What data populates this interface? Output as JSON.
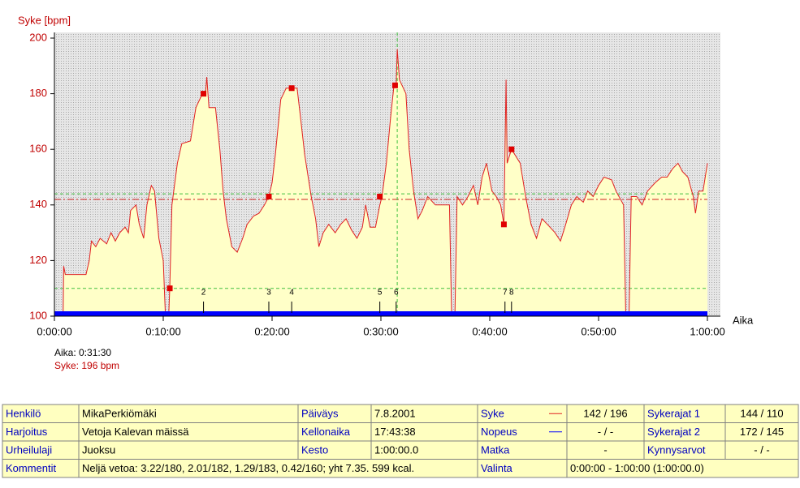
{
  "chart_data": {
    "type": "line",
    "y_label": "Syke [bpm]",
    "x_label": "Aika",
    "xlim": [
      0,
      60
    ],
    "ylim": [
      100,
      200
    ],
    "xticks": [
      {
        "value": 0,
        "label": "0:00:00"
      },
      {
        "value": 10,
        "label": "0:10:00"
      },
      {
        "value": 20,
        "label": "0:20:00"
      },
      {
        "value": 30,
        "label": "0:30:00"
      },
      {
        "value": 40,
        "label": "0:40:00"
      },
      {
        "value": 50,
        "label": "0:50:00"
      },
      {
        "value": 60,
        "label": "1:00:00"
      }
    ],
    "yticks": [
      100,
      120,
      140,
      160,
      180,
      200
    ],
    "series": [
      {
        "name": "Syke",
        "color": "#e02020",
        "x": [
          0.8,
          0.85,
          1.0,
          2.9,
          3.2,
          3.4,
          3.8,
          4.2,
          4.8,
          5.2,
          5.6,
          6.0,
          6.5,
          6.8,
          7.0,
          7.5,
          7.8,
          8.2,
          8.5,
          8.9,
          9.2,
          9.6,
          10.0,
          10.2,
          10.5,
          10.6,
          10.8,
          11.3,
          11.7,
          12.5,
          13.0,
          13.6,
          13.9,
          14.0,
          14.2,
          14.8,
          15.2,
          15.5,
          15.8,
          16.3,
          16.8,
          17.3,
          17.7,
          18.3,
          18.8,
          19.3,
          19.7,
          20.0,
          20.3,
          20.8,
          21.3,
          22.3,
          22.6,
          23.0,
          23.6,
          24.0,
          24.3,
          24.7,
          25.2,
          25.8,
          26.3,
          26.8,
          27.3,
          27.8,
          28.3,
          28.6,
          29.0,
          29.5,
          29.9,
          30.1,
          30.5,
          30.9,
          31.2,
          31.4,
          31.5,
          31.7,
          32.3,
          32.6,
          33.0,
          33.4,
          33.8,
          34.3,
          35.0,
          35.5,
          36.3,
          36.5,
          36.8,
          37.0,
          37.5,
          38.0,
          38.5,
          38.9,
          39.3,
          39.7,
          40.2,
          40.6,
          41.0,
          41.3,
          41.5,
          41.6,
          42.0,
          42.8,
          43.3,
          43.8,
          44.3,
          44.8,
          45.3,
          46.0,
          46.5,
          46.9,
          47.5,
          48.0,
          48.6,
          49.0,
          49.5,
          50.0,
          50.5,
          51.2,
          51.6,
          52.3,
          52.5,
          52.8,
          53.0,
          53.5,
          54.0,
          54.5,
          55.2,
          55.8,
          56.3,
          56.8,
          57.3,
          57.7,
          58.2,
          58.7,
          58.9,
          59.2,
          59.6,
          60.0
        ],
        "values": [
          100,
          118,
          115,
          115,
          120,
          127,
          125,
          128,
          126,
          130,
          127,
          130,
          132,
          130,
          138,
          140,
          133,
          128,
          140,
          147,
          145,
          128,
          120,
          100,
          100,
          110,
          140,
          155,
          162,
          163,
          175,
          180,
          181,
          186,
          175,
          175,
          160,
          145,
          135,
          125,
          123,
          128,
          133,
          136,
          137,
          140,
          143,
          148,
          158,
          178,
          182,
          182,
          172,
          158,
          143,
          135,
          125,
          130,
          133,
          130,
          133,
          135,
          131,
          128,
          132,
          140,
          132,
          132,
          140,
          143,
          155,
          172,
          183,
          183,
          196,
          185,
          180,
          160,
          145,
          135,
          138,
          143,
          140,
          140,
          140,
          100,
          100,
          143,
          140,
          143,
          147,
          140,
          150,
          155,
          145,
          143,
          140,
          133,
          185,
          155,
          160,
          155,
          143,
          133,
          128,
          135,
          133,
          130,
          127,
          132,
          140,
          143,
          141,
          145,
          143,
          147,
          150,
          149,
          145,
          140,
          100,
          100,
          143,
          143,
          140,
          145,
          148,
          150,
          150,
          153,
          155,
          152,
          150,
          143,
          137,
          145,
          145,
          155
        ]
      }
    ],
    "lap_markers": {
      "color": "#e00000",
      "x": [
        10.6,
        13.7,
        19.7,
        21.8,
        29.9,
        31.3,
        41.3,
        42.0
      ],
      "values": [
        110,
        180,
        143,
        182,
        143,
        183,
        133,
        160
      ]
    },
    "laps": {
      "labels": [
        "2",
        "3",
        "4",
        "5",
        "6",
        "7",
        "8"
      ],
      "x": [
        13.7,
        19.7,
        21.8,
        29.9,
        31.4,
        41.4,
        42.0
      ]
    },
    "reference_lines": [
      {
        "value": 142,
        "color": "#d02020"
      },
      {
        "value": 144,
        "color": "#40c040"
      },
      {
        "value": 110,
        "color": "#40c040"
      }
    ],
    "cursor": {
      "x": 31.5,
      "time_label": "Aika: 0:31:30",
      "hr_label": "Syke: 196 bpm"
    }
  },
  "info_table": {
    "rows": [
      [
        "Henkilö",
        "MikaPerkiömäki",
        "Päiväys",
        "7.8.2001",
        "Syke",
        "142 / 196",
        "Sykerajat 1",
        "144 / 110"
      ],
      [
        "Harjoitus",
        "Vetoja Kalevan mäissä",
        "Kellonaika",
        "17:43:38",
        "Nopeus",
        "- / -",
        "Sykerajat 2",
        "172 / 145"
      ],
      [
        "Urheilulaji",
        "Juoksu",
        "Kesto",
        "1:00:00.0",
        "Matka",
        "-",
        "Kynnysarvot",
        "- / -"
      ],
      [
        "Kommentit",
        "Neljä vetoa: 3.22/180, 2.01/182, 1.29/183, 0.42/160; yht 7.35. 599 kcal.",
        "Valinta",
        "0:00:00 - 1:00:00 (1:00:00.0)"
      ]
    ]
  }
}
